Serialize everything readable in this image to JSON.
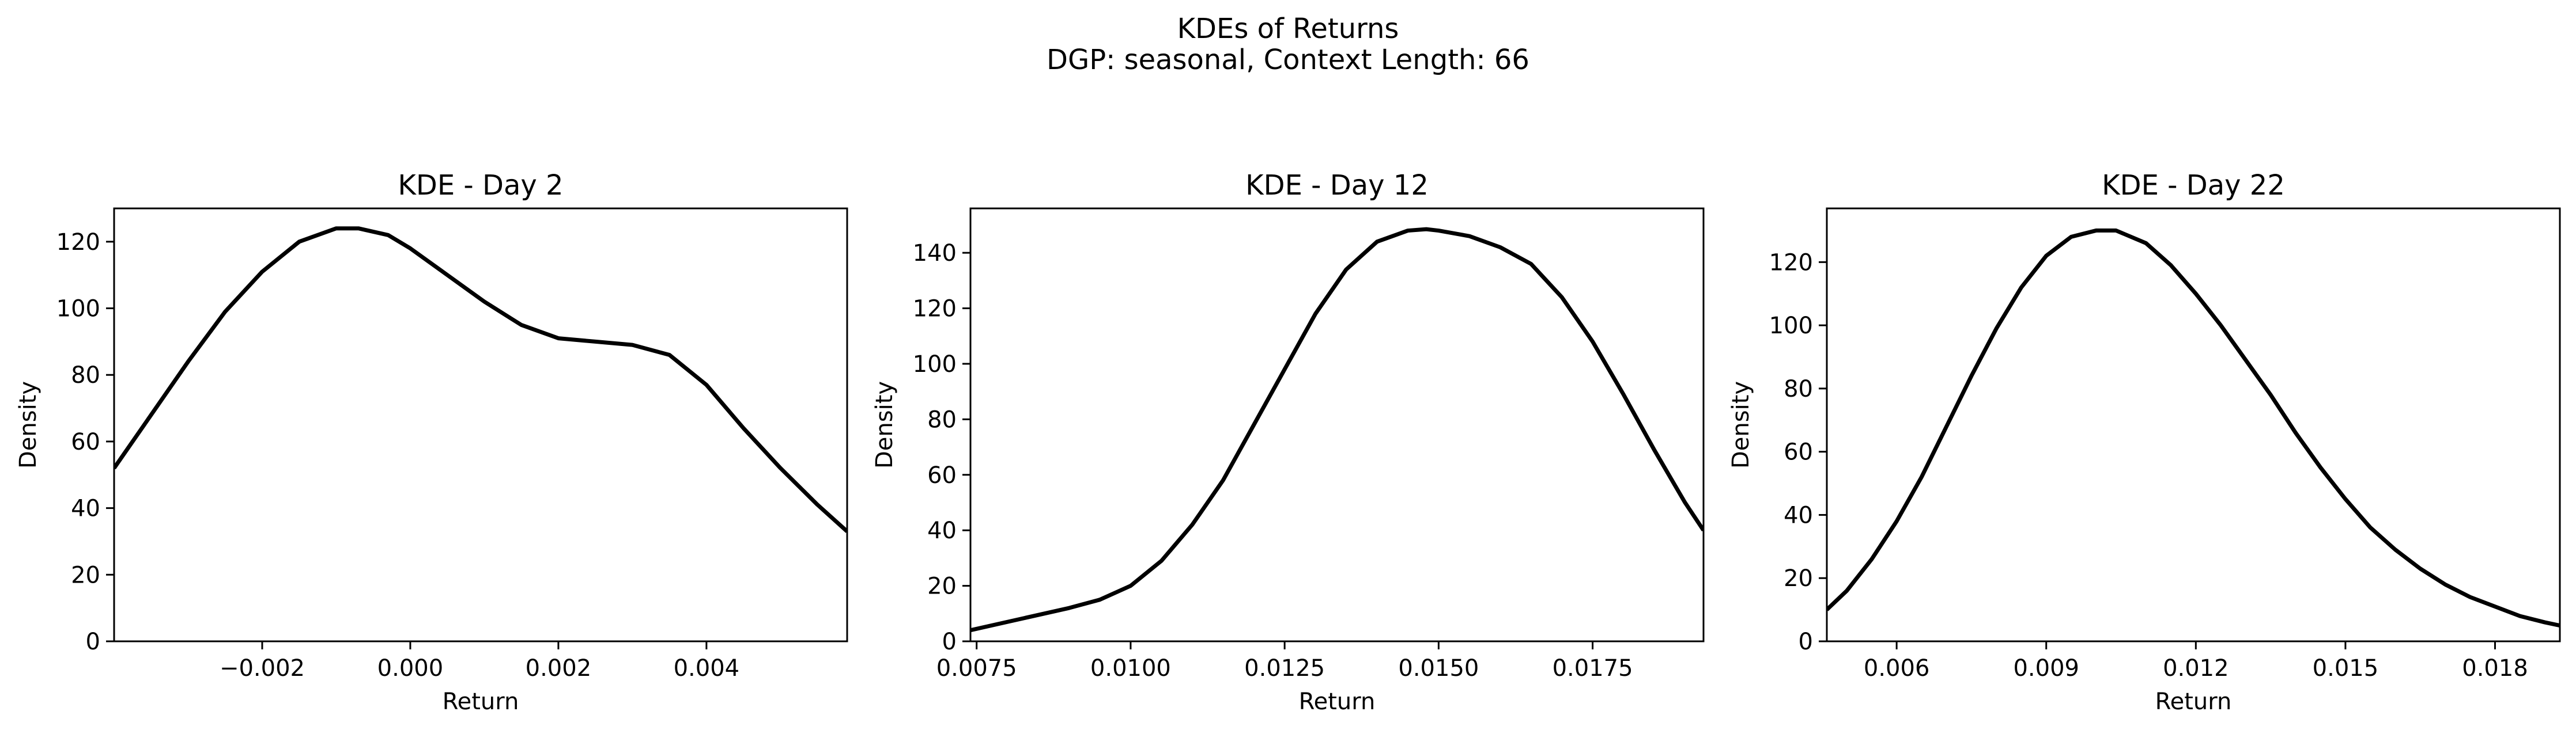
{
  "figure": {
    "title_line1": "KDEs of Returns",
    "title_line2": "DGP: seasonal, Context Length: 66"
  },
  "chart_data": [
    {
      "type": "line",
      "title": "KDE - Day 2",
      "xlabel": "Return",
      "ylabel": "Density",
      "xlim": [
        -0.004,
        0.0059
      ],
      "ylim": [
        0,
        130
      ],
      "xticks": [
        -0.002,
        0.0,
        0.002,
        0.004
      ],
      "xtick_labels": [
        "−0.002",
        "0.000",
        "0.002",
        "0.004"
      ],
      "yticks": [
        0,
        20,
        40,
        60,
        80,
        100,
        120
      ],
      "ytick_labels": [
        "0",
        "20",
        "40",
        "60",
        "80",
        "100",
        "120"
      ],
      "grid": false,
      "line_color": "#000000",
      "series": [
        {
          "x": [
            -0.004,
            -0.0035,
            -0.003,
            -0.0025,
            -0.002,
            -0.0015,
            -0.001,
            -0.0007,
            -0.0003,
            0.0,
            0.0005,
            0.001,
            0.0015,
            0.002,
            0.0025,
            0.003,
            0.0035,
            0.004,
            0.0045,
            0.005,
            0.0055,
            0.0059
          ],
          "y": [
            52,
            68,
            84,
            99,
            111,
            120,
            124,
            124,
            122,
            118,
            110,
            102,
            95,
            91,
            90,
            89,
            86,
            77,
            64,
            52,
            41,
            33
          ]
        }
      ]
    },
    {
      "type": "line",
      "title": "KDE - Day 12",
      "xlabel": "Return",
      "ylabel": "Density",
      "xlim": [
        0.0074,
        0.0193
      ],
      "ylim": [
        0,
        156
      ],
      "xticks": [
        0.0075,
        0.01,
        0.0125,
        0.015,
        0.0175
      ],
      "xtick_labels": [
        "0.0075",
        "0.0100",
        "0.0125",
        "0.0150",
        "0.0175"
      ],
      "yticks": [
        0,
        20,
        40,
        60,
        80,
        100,
        120,
        140
      ],
      "ytick_labels": [
        "0",
        "20",
        "40",
        "60",
        "80",
        "100",
        "120",
        "140"
      ],
      "grid": false,
      "line_color": "#000000",
      "series": [
        {
          "x": [
            0.0074,
            0.008,
            0.009,
            0.0095,
            0.01,
            0.0105,
            0.011,
            0.0115,
            0.012,
            0.0125,
            0.013,
            0.0135,
            0.014,
            0.0145,
            0.0148,
            0.015,
            0.0155,
            0.016,
            0.0165,
            0.017,
            0.0175,
            0.018,
            0.0185,
            0.019,
            0.0193
          ],
          "y": [
            4,
            7,
            12,
            15,
            20,
            29,
            42,
            58,
            78,
            98,
            118,
            134,
            144,
            148,
            148.5,
            148,
            146,
            142,
            136,
            124,
            108,
            89,
            69,
            50,
            40
          ]
        }
      ]
    },
    {
      "type": "line",
      "title": "KDE - Day 22",
      "xlabel": "Return",
      "ylabel": "Density",
      "xlim": [
        0.0046,
        0.0193
      ],
      "ylim": [
        0,
        137
      ],
      "xticks": [
        0.006,
        0.009,
        0.012,
        0.015,
        0.018
      ],
      "xtick_labels": [
        "0.006",
        "0.009",
        "0.012",
        "0.015",
        "0.018"
      ],
      "yticks": [
        0,
        20,
        40,
        60,
        80,
        100,
        120
      ],
      "ytick_labels": [
        "0",
        "20",
        "40",
        "60",
        "80",
        "100",
        "120"
      ],
      "grid": false,
      "line_color": "#000000",
      "series": [
        {
          "x": [
            0.0046,
            0.005,
            0.0055,
            0.006,
            0.0065,
            0.007,
            0.0075,
            0.008,
            0.0085,
            0.009,
            0.0095,
            0.01,
            0.0104,
            0.011,
            0.0115,
            0.012,
            0.0125,
            0.013,
            0.0135,
            0.014,
            0.0145,
            0.015,
            0.0155,
            0.016,
            0.0165,
            0.017,
            0.0175,
            0.018,
            0.0185,
            0.019,
            0.0193
          ],
          "y": [
            10,
            16,
            26,
            38,
            52,
            68,
            84,
            99,
            112,
            122,
            128,
            130,
            130,
            126,
            119,
            110,
            100,
            89,
            78,
            66,
            55,
            45,
            36,
            29,
            23,
            18,
            14,
            11,
            8,
            6,
            5
          ]
        }
      ]
    }
  ]
}
